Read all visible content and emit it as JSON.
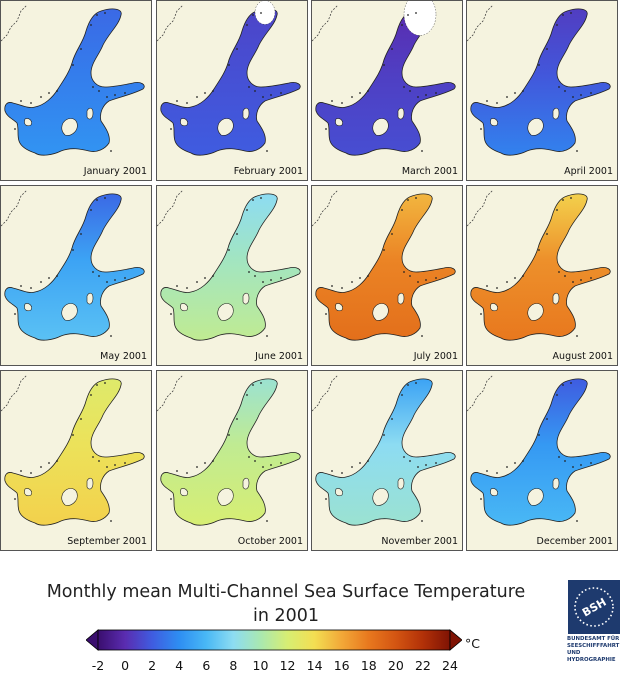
{
  "panels": [
    {
      "label": "January 2001",
      "temp": 3.3,
      "north_temp": 2.5,
      "south_temp": 4.3,
      "ice": 0.0
    },
    {
      "label": "February 2001",
      "temp": 1.5,
      "north_temp": 1.0,
      "south_temp": 2.0,
      "ice": 0.1
    },
    {
      "label": "March 2001",
      "temp": 0.8,
      "north_temp": 0.0,
      "south_temp": 1.4,
      "ice": 0.25
    },
    {
      "label": "April 2001",
      "temp": 1.8,
      "north_temp": 0.7,
      "south_temp": 3.5,
      "ice": 0.0
    },
    {
      "label": "May 2001",
      "temp": 5.0,
      "north_temp": 2.5,
      "south_temp": 6.5,
      "ice": 0.0
    },
    {
      "label": "June 2001",
      "temp": 9.5,
      "north_temp": 8.0,
      "south_temp": 11.0,
      "ice": 0.0
    },
    {
      "label": "July 2001",
      "temp": 17.5,
      "north_temp": 15.5,
      "south_temp": 18.5,
      "ice": 0.0
    },
    {
      "label": "August 2001",
      "temp": 17.0,
      "north_temp": 14.5,
      "south_temp": 18.0,
      "ice": 0.0
    },
    {
      "label": "September 2001",
      "temp": 13.5,
      "north_temp": 12.5,
      "south_temp": 14.5,
      "ice": 0.0
    },
    {
      "label": "October 2001",
      "temp": 11.0,
      "north_temp": 9.0,
      "south_temp": 12.0,
      "ice": 0.0
    },
    {
      "label": "November 2001",
      "temp": 8.0,
      "north_temp": 5.0,
      "south_temp": 9.0,
      "ice": 0.0
    },
    {
      "label": "December 2001",
      "temp": 4.5,
      "north_temp": 2.0,
      "south_temp": 6.0,
      "ice": 0.0
    }
  ],
  "title_line1": "Monthly mean Multi-Channel Sea Surface Temperature",
  "title_line2": "in 2001",
  "colorbar": {
    "min": -2,
    "max": 24,
    "ticks": [
      "-2",
      "0",
      "2",
      "4",
      "6",
      "8",
      "10",
      "12",
      "14",
      "16",
      "18",
      "20",
      "22",
      "24"
    ],
    "unit": "°C",
    "stops": [
      [
        -2,
        "#3a0e6e"
      ],
      [
        0,
        "#5a2cb0"
      ],
      [
        2,
        "#3f5ce0"
      ],
      [
        4,
        "#2e8ef2"
      ],
      [
        6,
        "#49b8f5"
      ],
      [
        8,
        "#8ddcf2"
      ],
      [
        10,
        "#a9e8b0"
      ],
      [
        12,
        "#d7ee73"
      ],
      [
        14,
        "#f3de52"
      ],
      [
        16,
        "#f2a838"
      ],
      [
        18,
        "#e8781e"
      ],
      [
        20,
        "#d35512"
      ],
      [
        22,
        "#b23108"
      ],
      [
        24,
        "#7f1304"
      ]
    ]
  },
  "logo": {
    "abbr": "BSH",
    "text": "BUNDESAMT FÜR\nSEESCHIFFFAHRT\nUND\nHYDROGRAPHIE"
  },
  "colors": {
    "land": "#f5f3df",
    "ice": "#ffffff",
    "logo": "#1e3a6e"
  }
}
